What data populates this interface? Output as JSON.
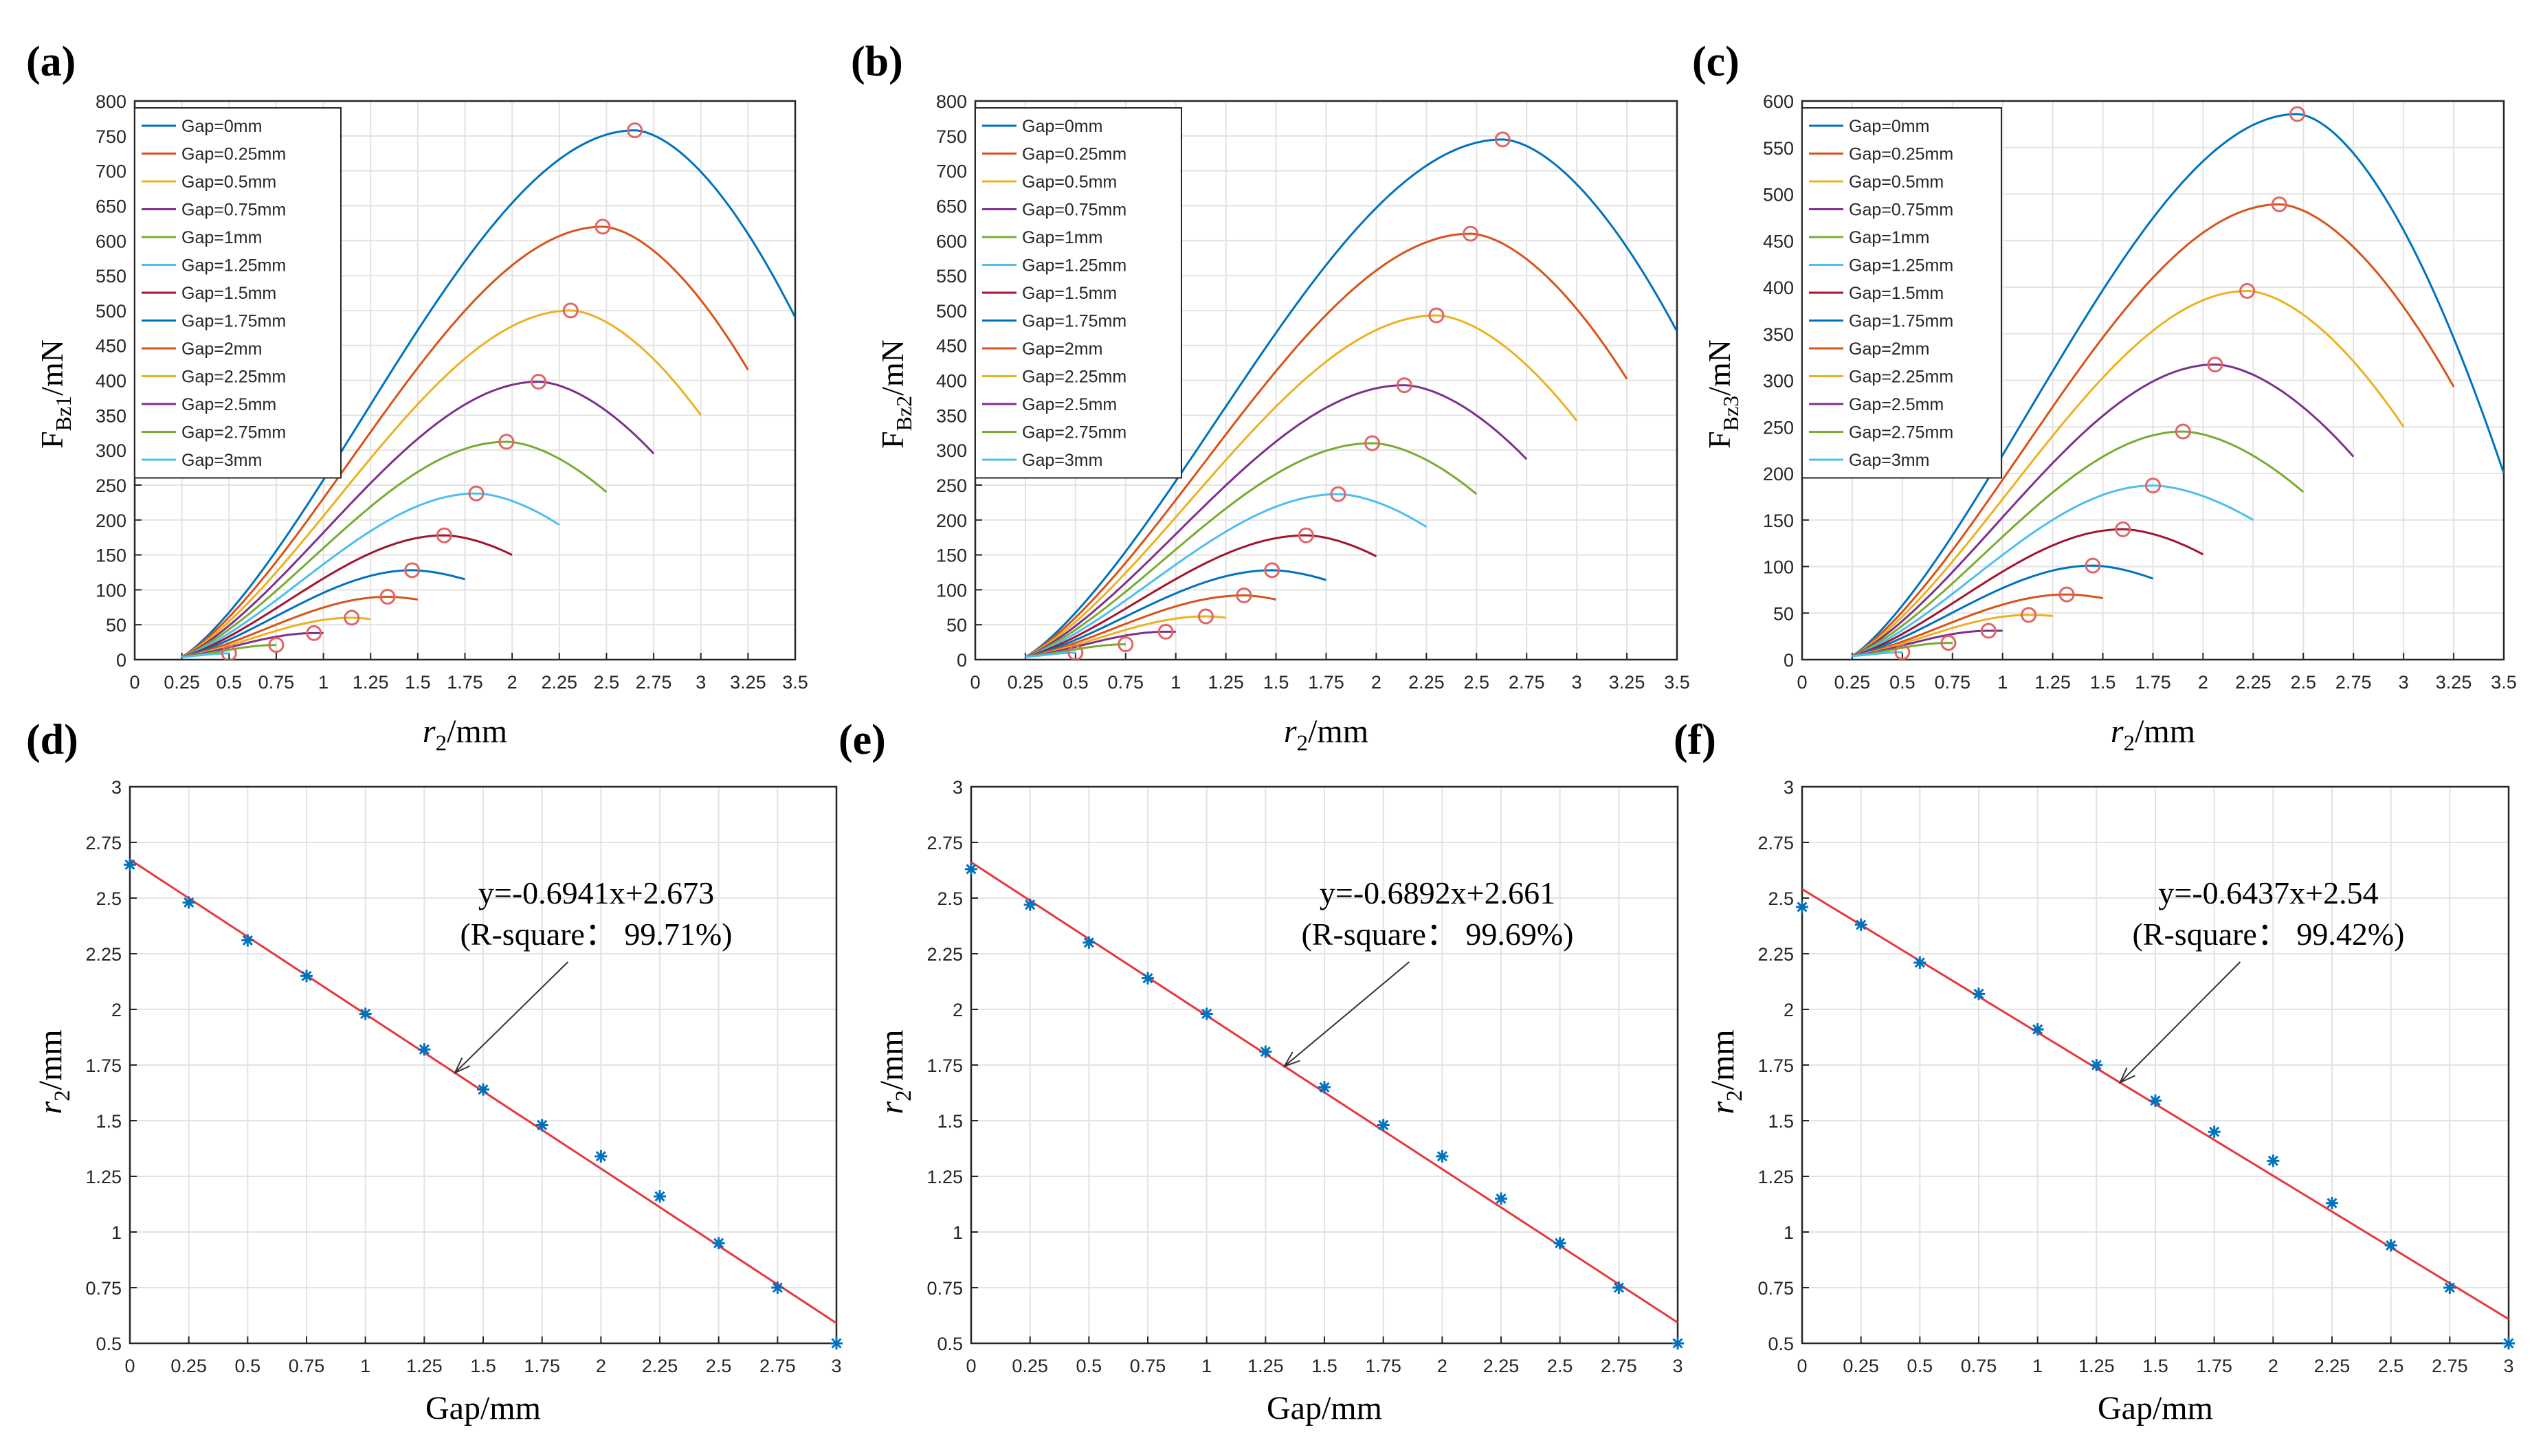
{
  "chart_data": [
    {
      "panel": "(a)",
      "type": "line",
      "xlabel_var": "r",
      "xlabel_sub": "2",
      "xlabel_unit": "/mm",
      "ylabel_var": "F",
      "ylabel_sub": "Bz1",
      "ylabel_unit": "/mN",
      "xlim": [
        0,
        3.5
      ],
      "ylim": [
        0,
        800
      ],
      "xticks": [
        "0",
        "0.25",
        "0.5",
        "0.75",
        "1",
        "1.25",
        "1.5",
        "1.75",
        "2",
        "2.25",
        "2.5",
        "2.75",
        "3",
        "3.25",
        "3.5"
      ],
      "yticks": [
        "0",
        "50",
        "100",
        "150",
        "200",
        "250",
        "300",
        "350",
        "400",
        "450",
        "500",
        "550",
        "600",
        "650",
        "700",
        "750",
        "800"
      ],
      "legend": [
        "Gap=0mm",
        "Gap=0.25mm",
        "Gap=0.5mm",
        "Gap=0.75mm",
        "Gap=1mm",
        "Gap=1.25mm",
        "Gap=1.5mm",
        "Gap=1.75mm",
        "Gap=2mm",
        "Gap=2.25mm",
        "Gap=2.5mm",
        "Gap=2.75mm",
        "Gap=3mm"
      ],
      "series": [
        {
          "name": "Gap=0mm",
          "xstart": 0.25,
          "xend": 3.5,
          "peak_x": 2.65,
          "peak_y": 758,
          "end_y": 490
        },
        {
          "name": "Gap=0.25mm",
          "xstart": 0.25,
          "xend": 3.25,
          "peak_x": 2.48,
          "peak_y": 620,
          "end_y": 415
        },
        {
          "name": "Gap=0.5mm",
          "xstart": 0.25,
          "xend": 3.0,
          "peak_x": 2.31,
          "peak_y": 500,
          "end_y": 350
        },
        {
          "name": "Gap=0.75mm",
          "xstart": 0.25,
          "xend": 2.75,
          "peak_x": 2.14,
          "peak_y": 398,
          "end_y": 295
        },
        {
          "name": "Gap=1mm",
          "xstart": 0.25,
          "xend": 2.5,
          "peak_x": 1.97,
          "peak_y": 312,
          "end_y": 240
        },
        {
          "name": "Gap=1.25mm",
          "xstart": 0.25,
          "xend": 2.25,
          "peak_x": 1.81,
          "peak_y": 238,
          "end_y": 193
        },
        {
          "name": "Gap=1.5mm",
          "xstart": 0.25,
          "xend": 2.0,
          "peak_x": 1.64,
          "peak_y": 178,
          "end_y": 150
        },
        {
          "name": "Gap=1.75mm",
          "xstart": 0.25,
          "xend": 1.75,
          "peak_x": 1.47,
          "peak_y": 128,
          "end_y": 115
        },
        {
          "name": "Gap=2mm",
          "xstart": 0.25,
          "xend": 1.5,
          "peak_x": 1.34,
          "peak_y": 90,
          "end_y": 86
        },
        {
          "name": "Gap=2.25mm",
          "xstart": 0.25,
          "xend": 1.25,
          "peak_x": 1.15,
          "peak_y": 60,
          "end_y": 58
        },
        {
          "name": "Gap=2.5mm",
          "xstart": 0.25,
          "xend": 1.0,
          "peak_x": 0.95,
          "peak_y": 38,
          "end_y": 38
        },
        {
          "name": "Gap=2.75mm",
          "xstart": 0.25,
          "xend": 0.75,
          "peak_x": 0.75,
          "peak_y": 21,
          "end_y": 21
        },
        {
          "name": "Gap=3mm",
          "xstart": 0.25,
          "xend": 0.5,
          "peak_x": 0.5,
          "peak_y": 9,
          "end_y": 9
        }
      ]
    },
    {
      "panel": "(b)",
      "type": "line",
      "xlabel_var": "r",
      "xlabel_sub": "2",
      "xlabel_unit": "/mm",
      "ylabel_var": "F",
      "ylabel_sub": "Bz2",
      "ylabel_unit": "/mN",
      "xlim": [
        0,
        3.5
      ],
      "ylim": [
        0,
        800
      ],
      "xticks": [
        "0",
        "0.25",
        "0.5",
        "0.75",
        "1",
        "1.25",
        "1.5",
        "1.75",
        "2",
        "2.25",
        "2.5",
        "2.75",
        "3",
        "3.25",
        "3.5"
      ],
      "yticks": [
        "0",
        "50",
        "100",
        "150",
        "200",
        "250",
        "300",
        "350",
        "400",
        "450",
        "500",
        "550",
        "600",
        "650",
        "700",
        "750",
        "800"
      ],
      "legend": [
        "Gap=0mm",
        "Gap=0.25mm",
        "Gap=0.5mm",
        "Gap=0.75mm",
        "Gap=1mm",
        "Gap=1.25mm",
        "Gap=1.5mm",
        "Gap=1.75mm",
        "Gap=2mm",
        "Gap=2.25mm",
        "Gap=2.5mm",
        "Gap=2.75mm",
        "Gap=3mm"
      ],
      "series": [
        {
          "name": "Gap=0mm",
          "xstart": 0.25,
          "xend": 3.5,
          "peak_x": 2.63,
          "peak_y": 745,
          "end_y": 470
        },
        {
          "name": "Gap=0.25mm",
          "xstart": 0.25,
          "xend": 3.25,
          "peak_x": 2.47,
          "peak_y": 610,
          "end_y": 402
        },
        {
          "name": "Gap=0.5mm",
          "xstart": 0.25,
          "xend": 3.0,
          "peak_x": 2.3,
          "peak_y": 493,
          "end_y": 342
        },
        {
          "name": "Gap=0.75mm",
          "xstart": 0.25,
          "xend": 2.75,
          "peak_x": 2.14,
          "peak_y": 393,
          "end_y": 287
        },
        {
          "name": "Gap=1mm",
          "xstart": 0.25,
          "xend": 2.5,
          "peak_x": 1.98,
          "peak_y": 310,
          "end_y": 237
        },
        {
          "name": "Gap=1.25mm",
          "xstart": 0.25,
          "xend": 2.25,
          "peak_x": 1.81,
          "peak_y": 237,
          "end_y": 190
        },
        {
          "name": "Gap=1.5mm",
          "xstart": 0.25,
          "xend": 2.0,
          "peak_x": 1.65,
          "peak_y": 178,
          "end_y": 148
        },
        {
          "name": "Gap=1.75mm",
          "xstart": 0.25,
          "xend": 1.75,
          "peak_x": 1.48,
          "peak_y": 128,
          "end_y": 114
        },
        {
          "name": "Gap=2mm",
          "xstart": 0.25,
          "xend": 1.5,
          "peak_x": 1.34,
          "peak_y": 92,
          "end_y": 86
        },
        {
          "name": "Gap=2.25mm",
          "xstart": 0.25,
          "xend": 1.25,
          "peak_x": 1.15,
          "peak_y": 62,
          "end_y": 60
        },
        {
          "name": "Gap=2.5mm",
          "xstart": 0.25,
          "xend": 1.0,
          "peak_x": 0.95,
          "peak_y": 40,
          "end_y": 40
        },
        {
          "name": "Gap=2.75mm",
          "xstart": 0.25,
          "xend": 0.75,
          "peak_x": 0.75,
          "peak_y": 22,
          "end_y": 22
        },
        {
          "name": "Gap=3mm",
          "xstart": 0.25,
          "xend": 0.5,
          "peak_x": 0.5,
          "peak_y": 10,
          "end_y": 10
        }
      ]
    },
    {
      "panel": "(c)",
      "type": "line",
      "xlabel_var": "r",
      "xlabel_sub": "2",
      "xlabel_unit": "/mm",
      "ylabel_var": "F",
      "ylabel_sub": "Bz3",
      "ylabel_unit": "/mN",
      "xlim": [
        0,
        3.5
      ],
      "ylim": [
        0,
        600
      ],
      "xticks": [
        "0",
        "0.25",
        "0.5",
        "0.75",
        "1",
        "1.25",
        "1.5",
        "1.75",
        "2",
        "2.25",
        "2.5",
        "2.75",
        "3",
        "3.25",
        "3.5"
      ],
      "yticks": [
        "0",
        "50",
        "100",
        "150",
        "200",
        "250",
        "300",
        "350",
        "400",
        "450",
        "500",
        "550",
        "600"
      ],
      "legend": [
        "Gap=0mm",
        "Gap=0.25mm",
        "Gap=0.5mm",
        "Gap=0.75mm",
        "Gap=1mm",
        "Gap=1.25mm",
        "Gap=1.5mm",
        "Gap=1.75mm",
        "Gap=2mm",
        "Gap=2.25mm",
        "Gap=2.5mm",
        "Gap=2.75mm",
        "Gap=3mm"
      ],
      "series": [
        {
          "name": "Gap=0mm",
          "xstart": 0.25,
          "xend": 3.5,
          "peak_x": 2.47,
          "peak_y": 586,
          "end_y": 200
        },
        {
          "name": "Gap=0.25mm",
          "xstart": 0.25,
          "xend": 3.25,
          "peak_x": 2.38,
          "peak_y": 489,
          "end_y": 293
        },
        {
          "name": "Gap=0.5mm",
          "xstart": 0.25,
          "xend": 3.0,
          "peak_x": 2.22,
          "peak_y": 396,
          "end_y": 250
        },
        {
          "name": "Gap=0.75mm",
          "xstart": 0.25,
          "xend": 2.75,
          "peak_x": 2.06,
          "peak_y": 317,
          "end_y": 218
        },
        {
          "name": "Gap=1mm",
          "xstart": 0.25,
          "xend": 2.5,
          "peak_x": 1.9,
          "peak_y": 245,
          "end_y": 180
        },
        {
          "name": "Gap=1.25mm",
          "xstart": 0.25,
          "xend": 2.25,
          "peak_x": 1.75,
          "peak_y": 187,
          "end_y": 150
        },
        {
          "name": "Gap=1.5mm",
          "xstart": 0.25,
          "xend": 2.0,
          "peak_x": 1.6,
          "peak_y": 140,
          "end_y": 113
        },
        {
          "name": "Gap=1.75mm",
          "xstart": 0.25,
          "xend": 1.75,
          "peak_x": 1.45,
          "peak_y": 101,
          "end_y": 87
        },
        {
          "name": "Gap=2mm",
          "xstart": 0.25,
          "xend": 1.5,
          "peak_x": 1.32,
          "peak_y": 70,
          "end_y": 66
        },
        {
          "name": "Gap=2.25mm",
          "xstart": 0.25,
          "xend": 1.25,
          "peak_x": 1.13,
          "peak_y": 48,
          "end_y": 47
        },
        {
          "name": "Gap=2.5mm",
          "xstart": 0.25,
          "xend": 1.0,
          "peak_x": 0.93,
          "peak_y": 31,
          "end_y": 31
        },
        {
          "name": "Gap=2.75mm",
          "xstart": 0.25,
          "xend": 0.75,
          "peak_x": 0.73,
          "peak_y": 18,
          "end_y": 18
        },
        {
          "name": "Gap=3mm",
          "xstart": 0.25,
          "xend": 0.5,
          "peak_x": 0.5,
          "peak_y": 8,
          "end_y": 8
        }
      ]
    },
    {
      "panel": "(d)",
      "type": "scatter",
      "xlabel": "Gap/mm",
      "ylabel_var": "r",
      "ylabel_sub": "2",
      "ylabel_unit": "/mm",
      "xlim": [
        0,
        3
      ],
      "ylim": [
        0.5,
        3
      ],
      "xticks": [
        "0",
        "0.25",
        "0.5",
        "0.75",
        "1",
        "1.25",
        "1.5",
        "1.75",
        "2",
        "2.25",
        "2.5",
        "2.75",
        "3"
      ],
      "yticks": [
        "0.5",
        "0.75",
        "1",
        "1.25",
        "1.5",
        "1.75",
        "2",
        "2.25",
        "2.5",
        "2.75",
        "3"
      ],
      "x": [
        0,
        0.25,
        0.5,
        0.75,
        1,
        1.25,
        1.5,
        1.75,
        2,
        2.25,
        2.5,
        2.75,
        3
      ],
      "y": [
        2.65,
        2.48,
        2.31,
        2.15,
        1.98,
        1.82,
        1.64,
        1.48,
        1.34,
        1.16,
        0.95,
        0.75,
        0.5
      ],
      "fit": {
        "slope": -0.6941,
        "intercept": 2.673
      },
      "annotation": {
        "line1": "y=-0.6941x+2.673",
        "line2": "(R-square： 99.71%)",
        "arrow_to_x": 1.38
      }
    },
    {
      "panel": "(e)",
      "type": "scatter",
      "xlabel": "Gap/mm",
      "ylabel_var": "r",
      "ylabel_sub": "2",
      "ylabel_unit": "/mm",
      "xlim": [
        0,
        3
      ],
      "ylim": [
        0.5,
        3
      ],
      "xticks": [
        "0",
        "0.25",
        "0.5",
        "0.75",
        "1",
        "1.25",
        "1.5",
        "1.75",
        "2",
        "2.25",
        "2.5",
        "2.75",
        "3"
      ],
      "yticks": [
        "0.5",
        "0.75",
        "1",
        "1.25",
        "1.5",
        "1.75",
        "2",
        "2.25",
        "2.5",
        "2.75",
        "3"
      ],
      "x": [
        0,
        0.25,
        0.5,
        0.75,
        1,
        1.25,
        1.5,
        1.75,
        2,
        2.25,
        2.5,
        2.75,
        3
      ],
      "y": [
        2.63,
        2.47,
        2.3,
        2.14,
        1.98,
        1.81,
        1.65,
        1.48,
        1.34,
        1.15,
        0.95,
        0.75,
        0.5
      ],
      "fit": {
        "slope": -0.6892,
        "intercept": 2.661
      },
      "annotation": {
        "line1": "y=-0.6892x+2.661",
        "line2": "(R-square： 99.69%)",
        "arrow_to_x": 1.33
      }
    },
    {
      "panel": "(f)",
      "type": "scatter",
      "xlabel": "Gap/mm",
      "ylabel_var": "r",
      "ylabel_sub": "2",
      "ylabel_unit": "/mm",
      "xlim": [
        0,
        3
      ],
      "ylim": [
        0.5,
        3
      ],
      "xticks": [
        "0",
        "0.25",
        "0.5",
        "0.75",
        "1",
        "1.25",
        "1.5",
        "1.75",
        "2",
        "2.25",
        "2.5",
        "2.75",
        "3"
      ],
      "yticks": [
        "0.5",
        "0.75",
        "1",
        "1.25",
        "1.5",
        "1.75",
        "2",
        "2.25",
        "2.5",
        "2.75",
        "3"
      ],
      "x": [
        0,
        0.25,
        0.5,
        0.75,
        1,
        1.25,
        1.5,
        1.75,
        2,
        2.25,
        2.5,
        2.75,
        3
      ],
      "y": [
        2.46,
        2.38,
        2.21,
        2.07,
        1.91,
        1.75,
        1.59,
        1.45,
        1.32,
        1.13,
        0.94,
        0.75,
        0.5
      ],
      "fit": {
        "slope": -0.6437,
        "intercept": 2.54
      },
      "annotation": {
        "line1": "y=-0.6437x+2.54",
        "line2": "(R-square： 99.42%)",
        "arrow_to_x": 1.35
      }
    }
  ],
  "colors": {
    "series": [
      "#0072BD",
      "#D95319",
      "#EDB120",
      "#7E2F8E",
      "#77AC30",
      "#4DBEEE",
      "#A2142F",
      "#0072BD",
      "#D95319",
      "#EDB120",
      "#7E2F8E",
      "#77AC30",
      "#4DBEEE"
    ],
    "peak_marker": "#E06666",
    "fit_line": "#E8373A",
    "scatter_marker": "#0072BD",
    "grid": "#e3e3e3",
    "axis": "#262626",
    "arrow": "#333333"
  }
}
